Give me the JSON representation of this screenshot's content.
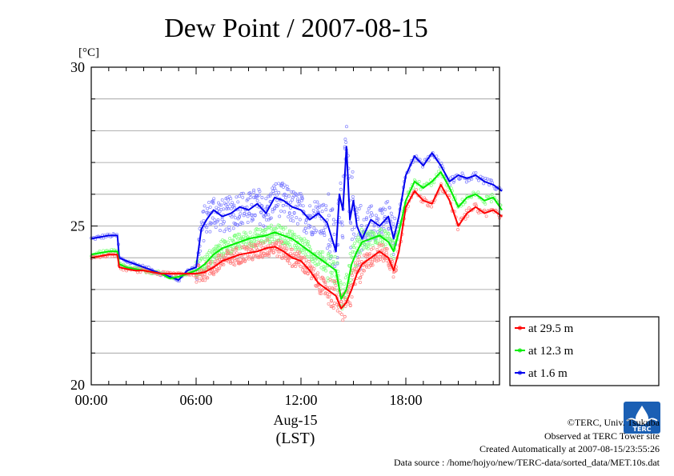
{
  "chart_data": {
    "type": "line",
    "title": "Dew Point / 2007-08-15",
    "ylabel": "[°C]",
    "ylim": [
      20,
      30
    ],
    "y_ticks": [
      "30",
      "25",
      "20"
    ],
    "x_ticks": [
      "00:00",
      "06:00",
      "12:00",
      "18:00"
    ],
    "x_sublabel": "Aug-15",
    "x_unit_label": "(LST)",
    "xlim_hours": [
      0,
      23.5
    ],
    "grid": "horizontal",
    "legend_position": "lower-right outside",
    "series": [
      {
        "name": "at 29.5 m",
        "color": "#ff0000",
        "x": [
          0,
          0.5,
          1,
          1.5,
          1.6,
          2,
          2.5,
          3,
          3.5,
          4,
          4.5,
          5,
          5.5,
          6,
          6.5,
          7,
          7.5,
          8,
          8.5,
          9,
          9.5,
          10,
          10.5,
          11,
          11.5,
          12,
          12.5,
          13,
          13.5,
          14,
          14.3,
          14.6,
          14.9,
          15.2,
          15.5,
          16,
          16.5,
          17,
          17.3,
          17.6,
          18,
          18.5,
          19,
          19.5,
          20,
          20.5,
          21,
          21.5,
          22,
          22.5,
          23,
          23.5
        ],
        "values": [
          24.0,
          24.05,
          24.1,
          24.1,
          23.7,
          23.65,
          23.6,
          23.6,
          23.55,
          23.5,
          23.5,
          23.5,
          23.5,
          23.5,
          23.55,
          23.7,
          23.9,
          24.0,
          24.1,
          24.15,
          24.2,
          24.3,
          24.35,
          24.2,
          24.0,
          23.9,
          23.6,
          23.2,
          23.0,
          22.8,
          22.4,
          22.6,
          23.0,
          23.5,
          23.8,
          24.0,
          24.2,
          24.0,
          23.6,
          24.2,
          25.6,
          26.1,
          25.8,
          25.7,
          26.3,
          25.8,
          25.0,
          25.4,
          25.6,
          25.4,
          25.5,
          25.3
        ]
      },
      {
        "name": "at 12.3 m",
        "color": "#00ee00",
        "x": [
          0,
          0.5,
          1,
          1.5,
          1.6,
          2,
          2.5,
          3,
          3.5,
          4,
          4.5,
          5,
          5.5,
          6,
          6.5,
          7,
          7.5,
          8,
          8.5,
          9,
          9.5,
          10,
          10.5,
          11,
          11.5,
          12,
          12.5,
          13,
          13.5,
          14,
          14.3,
          14.6,
          14.9,
          15.2,
          15.5,
          16,
          16.5,
          17,
          17.3,
          17.6,
          18,
          18.5,
          19,
          19.5,
          20,
          20.5,
          21,
          21.5,
          22,
          22.5,
          23,
          23.5
        ],
        "values": [
          24.1,
          24.15,
          24.2,
          24.2,
          23.8,
          23.7,
          23.65,
          23.6,
          23.55,
          23.5,
          23.35,
          23.4,
          23.5,
          23.6,
          23.8,
          24.1,
          24.3,
          24.4,
          24.5,
          24.6,
          24.65,
          24.7,
          24.8,
          24.7,
          24.6,
          24.4,
          24.2,
          24.0,
          23.8,
          23.6,
          22.7,
          23.0,
          23.8,
          24.2,
          24.5,
          24.6,
          24.7,
          24.5,
          24.2,
          24.8,
          25.8,
          26.4,
          26.2,
          26.4,
          26.7,
          26.2,
          25.6,
          25.9,
          26.0,
          25.8,
          25.9,
          25.5
        ]
      },
      {
        "name": "at 1.6 m",
        "color": "#0000ee",
        "x": [
          0,
          0.5,
          1,
          1.5,
          1.6,
          2,
          2.5,
          3,
          3.5,
          4,
          4.5,
          5,
          5.5,
          6,
          6.3,
          6.6,
          7,
          7.5,
          8,
          8.5,
          9,
          9.5,
          10,
          10.5,
          11,
          11.5,
          12,
          12.5,
          13,
          13.5,
          14,
          14.2,
          14.4,
          14.6,
          14.8,
          15.0,
          15.2,
          15.5,
          16,
          16.5,
          17,
          17.3,
          17.6,
          18,
          18.5,
          19,
          19.5,
          20,
          20.5,
          21,
          21.5,
          22,
          22.5,
          23,
          23.5
        ],
        "values": [
          24.6,
          24.65,
          24.7,
          24.7,
          24.0,
          23.9,
          23.8,
          23.7,
          23.6,
          23.5,
          23.4,
          23.3,
          23.6,
          23.7,
          24.9,
          25.2,
          25.5,
          25.3,
          25.4,
          25.6,
          25.5,
          25.7,
          25.4,
          25.9,
          25.8,
          25.6,
          25.5,
          25.2,
          25.4,
          25.1,
          24.2,
          26.0,
          25.5,
          27.5,
          25.2,
          25.8,
          25.0,
          24.6,
          25.2,
          25.0,
          25.3,
          24.6,
          25.3,
          26.6,
          27.2,
          26.9,
          27.3,
          26.9,
          26.4,
          26.6,
          26.5,
          26.6,
          26.4,
          26.3,
          26.1
        ]
      }
    ]
  },
  "legend": {
    "entries": [
      "at 29.5 m",
      "at 12.3 m",
      "at 1.6 m"
    ]
  },
  "footer": {
    "copyright": "©TERC, Univ. Tsukuba",
    "site": "Observed at TERC Tower site",
    "created": "Created Automatically at 2007-08-15/23:55:26",
    "source": "Data source : /home/hojyo/new/TERC-data/sorted_data/MET.10s.dat"
  },
  "logo": {
    "text": "TERC",
    "color": "#1a5fb4"
  }
}
